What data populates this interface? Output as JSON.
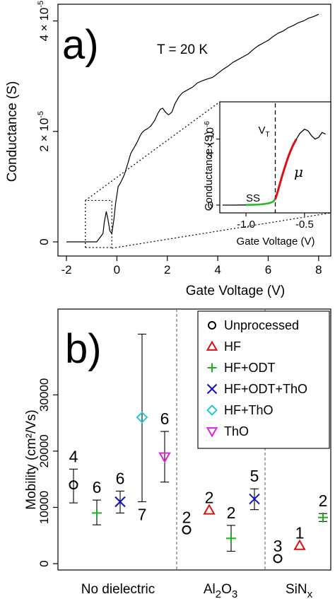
{
  "chart_data": [
    {
      "type": "line",
      "panel_label": "a)",
      "annotation": "T = 20 K",
      "xlabel": "Gate Voltage (V)",
      "ylabel": "Conductance (S)",
      "xlim": [
        -2,
        8.2
      ],
      "ylim": [
        0,
        4.2e-05
      ],
      "x_ticks": [
        "-2",
        "0",
        "2",
        "4",
        "6",
        "8"
      ],
      "y_ticks": [
        "0",
        "2 × 10",
        "4 × 10"
      ],
      "y_tick_exponent": "-5",
      "series": [
        {
          "x": [
            -2.0,
            -0.8,
            -0.55,
            -0.5,
            -0.42,
            -0.35,
            -0.28,
            -0.2,
            -0.12,
            -0.05,
            0.0,
            0.05,
            0.12,
            0.2,
            0.3,
            0.42,
            0.55,
            0.7,
            0.82,
            0.92,
            1.0,
            1.1,
            1.22,
            1.35,
            1.5,
            1.62,
            1.72,
            1.82,
            1.92,
            2.05,
            2.18,
            2.3,
            2.45,
            2.6,
            2.8,
            3.0,
            3.2,
            3.4,
            3.6,
            3.8,
            4.0,
            4.2,
            4.4,
            4.6,
            4.8,
            5.0,
            5.2,
            5.4,
            5.6,
            5.8,
            6.0,
            6.2,
            6.4,
            6.6,
            6.8,
            7.0,
            7.2,
            7.4,
            7.6,
            7.8,
            8.0
          ],
          "y": [
            0.0,
            0.0,
            1.5e-06,
            3.5e-06,
            5.5e-06,
            4e-06,
            2e-06,
            1.5e-06,
            4e-06,
            7e-06,
            8.5e-06,
            1e-05,
            1.05e-05,
            1.12e-05,
            1.22e-05,
            1.4e-05,
            1.6e-05,
            1.72e-05,
            1.82e-05,
            1.92e-05,
            1.98e-05,
            2.02e-05,
            2.05e-05,
            2.1e-05,
            2.2e-05,
            2.32e-05,
            2.4e-05,
            2.42e-05,
            2.35e-05,
            2.3e-05,
            2.35e-05,
            2.5e-05,
            2.62e-05,
            2.7e-05,
            2.75e-05,
            2.8e-05,
            2.88e-05,
            2.92e-05,
            2.95e-05,
            2.98e-05,
            3.05e-05,
            3.12e-05,
            3.18e-05,
            3.25e-05,
            3.3e-05,
            3.35e-05,
            3.4e-05,
            3.48e-05,
            3.55e-05,
            3.6e-05,
            3.65e-05,
            3.72e-05,
            3.78e-05,
            3.82e-05,
            3.88e-05,
            3.92e-05,
            3.97e-05,
            4e-05,
            4.05e-05,
            4.08e-05,
            4.12e-05
          ]
        }
      ],
      "inset": {
        "xlabel": "Gate Voltage (V)",
        "ylabel": "Conductance (S)",
        "xlim": [
          -1.2,
          -0.3
        ],
        "ylim": [
          -3e-07,
          6e-06
        ],
        "x_ticks": [
          "-1.0",
          "-0.5"
        ],
        "y_ticks": [
          "0",
          "4 × 10"
        ],
        "y_tick_exponent": "-6",
        "threshold_label": "V",
        "threshold_subscript": "T",
        "threshold_x": -0.75,
        "ss_label": "SS",
        "mu_label": "μ",
        "x": [
          -1.2,
          -1.1,
          -1.0,
          -0.9,
          -0.85,
          -0.8,
          -0.77,
          -0.75,
          -0.73,
          -0.71,
          -0.69,
          -0.67,
          -0.65,
          -0.63,
          -0.6,
          -0.57,
          -0.54,
          -0.5,
          -0.47,
          -0.44,
          -0.41,
          -0.38,
          -0.35,
          -0.32
        ],
        "y": [
          0.0,
          0.0,
          1e-08,
          3e-08,
          6e-08,
          1.2e-07,
          2e-07,
          3.5e-07,
          8e-07,
          1.3e-06,
          1.8e-06,
          2.25e-06,
          2.7e-06,
          3.1e-06,
          3.6e-06,
          4e-06,
          4.35e-06,
          4.6e-06,
          4.5e-06,
          4.2e-06,
          4e-06,
          4.1e-06,
          4.4e-06,
          4.3e-06
        ],
        "colors": {
          "ss": "#22bb22",
          "mu": "#dd1111"
        }
      }
    },
    {
      "type": "scatter",
      "panel_label": "b)",
      "ylabel": "Mobility (cm²/Vs)",
      "ylim": [
        0,
        44000
      ],
      "y_ticks": [
        0,
        10000,
        20000,
        30000
      ],
      "group_labels": [
        "No dielectric",
        "Al",
        "2",
        "O",
        "3",
        "SiN",
        "x"
      ],
      "legend": [
        {
          "name": "Unprocessed",
          "marker": "circle",
          "color": "#000000"
        },
        {
          "name": "HF",
          "marker": "triangle-up",
          "color": "#dd1111"
        },
        {
          "name": "HF+ODT",
          "marker": "plus",
          "color": "#22aa22"
        },
        {
          "name": "HF+ODT+ThO",
          "marker": "cross",
          "color": "#1111bb"
        },
        {
          "name": "HF+ThO",
          "marker": "diamond",
          "color": "#22cccc"
        },
        {
          "name": "ThO",
          "marker": "triangle-down",
          "color": "#dd22dd"
        }
      ],
      "points": [
        {
          "group": "No dielectric",
          "series": "Unprocessed",
          "value": 14000,
          "low": 10800,
          "high": 16800,
          "n": "4"
        },
        {
          "group": "No dielectric",
          "series": "HF+ODT",
          "value": 9000,
          "low": 6900,
          "high": 11300,
          "n": "6"
        },
        {
          "group": "No dielectric",
          "series": "HF+ODT+ThO",
          "value": 11000,
          "low": 9000,
          "high": 12900,
          "n": "6"
        },
        {
          "group": "No dielectric",
          "series": "HF+ThO",
          "value": 26000,
          "low": 11000,
          "high": 40800,
          "n": "7"
        },
        {
          "group": "No dielectric",
          "series": "ThO",
          "value": 19000,
          "low": 14500,
          "high": 23500,
          "n": "6"
        },
        {
          "group": "Al2O3",
          "series": "Unprocessed",
          "value": 6000,
          "low": 6000,
          "high": 6000,
          "n": "2"
        },
        {
          "group": "Al2O3",
          "series": "HF",
          "value": 9500,
          "low": 9500,
          "high": 9500,
          "n": "2"
        },
        {
          "group": "Al2O3",
          "series": "HF+ODT",
          "value": 4500,
          "low": 2200,
          "high": 6800,
          "n": "2"
        },
        {
          "group": "Al2O3",
          "series": "HF+ODT+ThO",
          "value": 11500,
          "low": 9600,
          "high": 13300,
          "n": "5"
        },
        {
          "group": "SiNx",
          "series": "Unprocessed",
          "value": 900,
          "low": 900,
          "high": 900,
          "n": "3"
        },
        {
          "group": "SiNx",
          "series": "HF",
          "value": 3200,
          "low": 3200,
          "high": 3200,
          "n": "1"
        },
        {
          "group": "SiNx",
          "series": "HF+ODT",
          "value": 8200,
          "low": 7500,
          "high": 8900,
          "n": "2"
        }
      ]
    }
  ]
}
